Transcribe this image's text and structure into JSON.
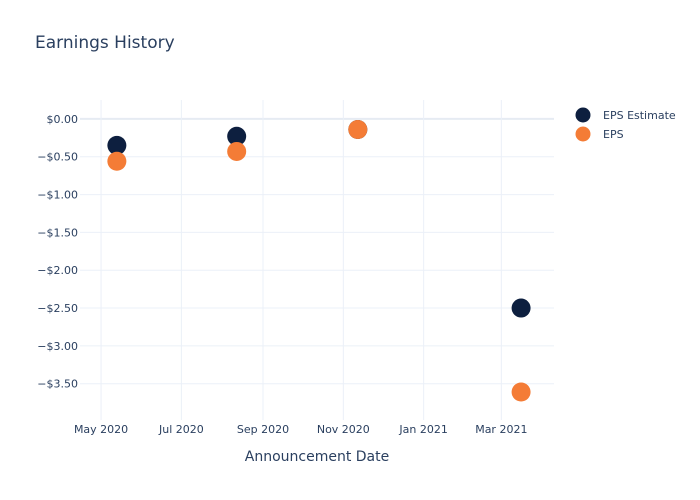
{
  "chart_data": {
    "type": "scatter",
    "title": "Earnings History",
    "xlabel": "Announcement Date",
    "ylabel": "",
    "x_ticks": [
      "May 2020",
      "Jul 2020",
      "Sep 2020",
      "Nov 2020",
      "Jan 2021",
      "Mar 2021"
    ],
    "x_tick_dates": [
      "2020-05-01",
      "2020-07-01",
      "2020-09-01",
      "2020-11-01",
      "2021-01-01",
      "2021-03-01"
    ],
    "xlim": [
      "2020-04-15",
      "2021-04-10"
    ],
    "y_ticks": [
      0,
      -0.5,
      -1,
      -1.5,
      -2,
      -2.5,
      -3,
      -3.5
    ],
    "y_tick_labels": [
      "$0.00",
      "−$0.50",
      "−$1.00",
      "−$1.50",
      "−$2.00",
      "−$2.50",
      "−$3.00",
      "−$3.50"
    ],
    "ylim": [
      -3.98,
      0.25
    ],
    "grid": true,
    "legend_position": "top-right",
    "series": [
      {
        "name": "EPS Estimate",
        "color": "#0d1f3f",
        "points": [
          {
            "x": "2020-05-13",
            "y": -0.35
          },
          {
            "x": "2020-08-12",
            "y": -0.23
          },
          {
            "x": "2020-11-12",
            "y": -0.14
          },
          {
            "x": "2021-03-16",
            "y": -2.5
          }
        ]
      },
      {
        "name": "EPS",
        "color": "#f47c36",
        "points": [
          {
            "x": "2020-05-13",
            "y": -0.56
          },
          {
            "x": "2020-08-12",
            "y": -0.43
          },
          {
            "x": "2020-11-12",
            "y": -0.14
          },
          {
            "x": "2021-03-16",
            "y": -3.61
          }
        ]
      }
    ]
  }
}
